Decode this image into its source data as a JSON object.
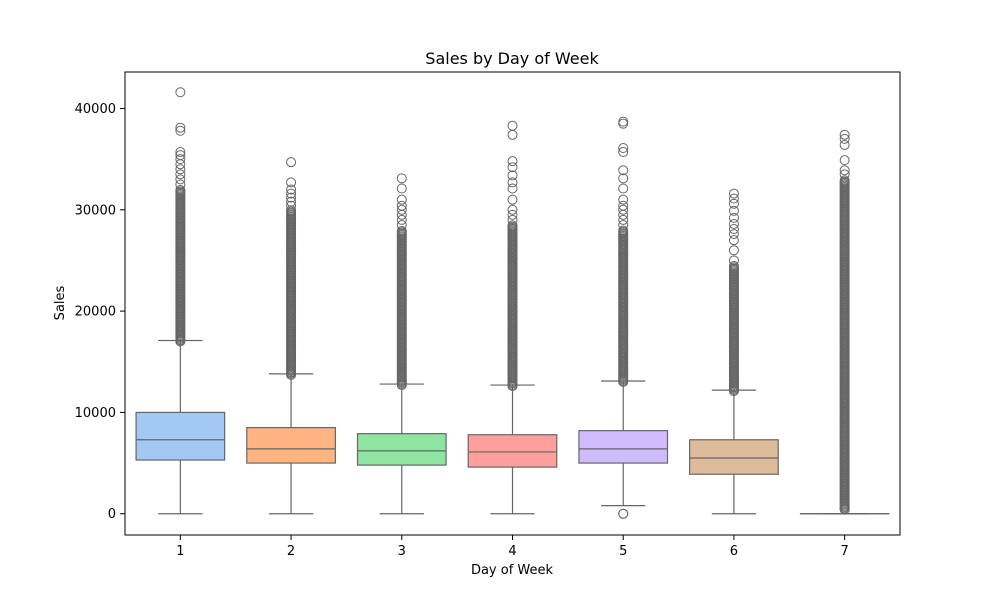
{
  "chart_data": {
    "type": "box",
    "title": "Sales by Day of Week",
    "xlabel": "Day of Week",
    "ylabel": "Sales",
    "categories": [
      "1",
      "2",
      "3",
      "4",
      "5",
      "6",
      "7"
    ],
    "ylim": [
      -2100,
      43600
    ],
    "yticks": [
      0,
      10000,
      20000,
      30000,
      40000
    ],
    "ytick_labels": [
      "0",
      "10000",
      "20000",
      "30000",
      "40000"
    ],
    "grid": false,
    "legend": "none",
    "colors": [
      "#a1c9f4",
      "#ffb482",
      "#8de5a1",
      "#ff9f9b",
      "#d0bbff",
      "#debb9b",
      "#fab0e4"
    ],
    "line_color": "#666666",
    "boxes": [
      {
        "category": "1",
        "whisker_low": 0,
        "q1": 5300,
        "median": 7300,
        "q3": 10000,
        "whisker_high": 17100,
        "outliers_dense_from": 17000,
        "outliers_dense_to": 32000,
        "outliers": [
          32500,
          33000,
          33500,
          34000,
          34500,
          35000,
          35400,
          35700,
          37800,
          38100,
          41600
        ]
      },
      {
        "category": "2",
        "whisker_low": 0,
        "q1": 5000,
        "median": 6400,
        "q3": 8500,
        "whisker_high": 13800,
        "outliers_dense_from": 13700,
        "outliers_dense_to": 30000,
        "outliers": [
          30400,
          30800,
          31200,
          31600,
          32000,
          32700,
          34700
        ]
      },
      {
        "category": "3",
        "whisker_low": 0,
        "q1": 4800,
        "median": 6200,
        "q3": 7900,
        "whisker_high": 12800,
        "outliers_dense_from": 12700,
        "outliers_dense_to": 28000,
        "outliers": [
          28500,
          29000,
          29500,
          30000,
          30400,
          31000,
          32100,
          33100
        ]
      },
      {
        "category": "4",
        "whisker_low": 0,
        "q1": 4600,
        "median": 6100,
        "q3": 7800,
        "whisker_high": 12700,
        "outliers_dense_from": 12600,
        "outliers_dense_to": 28500,
        "outliers": [
          29000,
          29500,
          30000,
          31000,
          32100,
          32700,
          33400,
          34200,
          34800,
          37400,
          38300
        ]
      },
      {
        "category": "5",
        "whisker_low": 800,
        "q1": 5000,
        "median": 6400,
        "q3": 8200,
        "whisker_high": 13100,
        "outliers_dense_from": 13000,
        "outliers_dense_to": 28000,
        "outliers": [
          28500,
          29000,
          29500,
          30000,
          30400,
          31000,
          32100,
          33100,
          33900,
          35700,
          36100,
          38500,
          38700,
          0,
          0
        ]
      },
      {
        "category": "6",
        "whisker_low": 0,
        "q1": 3900,
        "median": 5500,
        "q3": 7300,
        "whisker_high": 12200,
        "outliers_dense_from": 12100,
        "outliers_dense_to": 24500,
        "outliers": [
          25000,
          26000,
          27000,
          27600,
          28100,
          28600,
          29200,
          29900,
          30600,
          31100,
          31600
        ]
      },
      {
        "category": "7",
        "whisker_low": 0,
        "q1": 0,
        "median": 0,
        "q3": 0,
        "whisker_high": 0,
        "outliers_dense_from": 400,
        "outliers_dense_to": 33000,
        "outliers": [
          33500,
          33900,
          34900,
          36400,
          37000,
          37400
        ]
      }
    ]
  }
}
